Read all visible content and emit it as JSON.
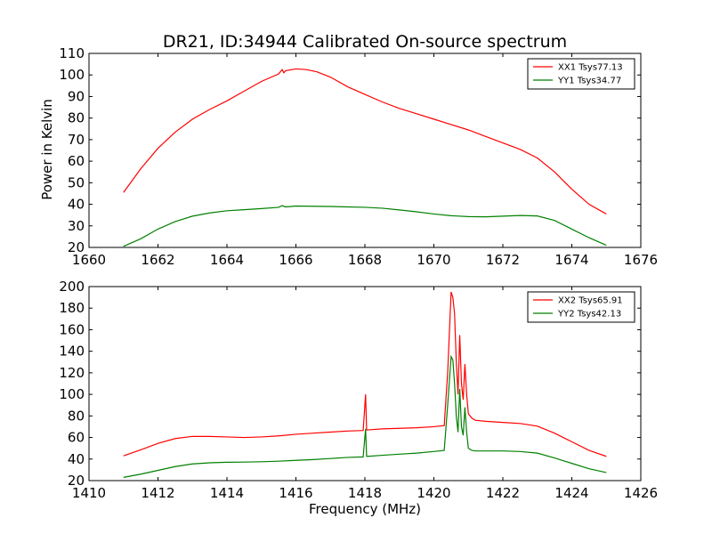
{
  "figure": {
    "title": "DR21, ID:34944 Calibrated On-source spectrum",
    "xlabel": "Frequency (MHz)",
    "ylabel": "Power in Kelvin"
  },
  "colors": {
    "xx": "#ff0000",
    "yy": "#008000"
  },
  "chart_data": [
    {
      "type": "line",
      "xlim": [
        1660,
        1676
      ],
      "ylim": [
        20,
        110
      ],
      "xticks": [
        1660,
        1662,
        1664,
        1666,
        1668,
        1670,
        1672,
        1674,
        1676
      ],
      "yticks": [
        20,
        30,
        40,
        50,
        60,
        70,
        80,
        90,
        100,
        110
      ],
      "legend_position": "top-right",
      "series": [
        {
          "name": "XX1 Tsys77.13",
          "color": "#ff0000",
          "x": [
            1661.0,
            1661.5,
            1662.0,
            1662.5,
            1663.0,
            1663.5,
            1664.0,
            1664.5,
            1665.0,
            1665.5,
            1665.6,
            1665.65,
            1665.7,
            1666.0,
            1666.3,
            1666.6,
            1667.0,
            1667.5,
            1668.0,
            1668.5,
            1669.0,
            1669.5,
            1670.0,
            1670.5,
            1671.0,
            1671.5,
            1672.0,
            1672.5,
            1673.0,
            1673.5,
            1674.0,
            1674.5,
            1675.0
          ],
          "y": [
            45.5,
            56.5,
            66.0,
            73.5,
            79.5,
            84.0,
            88.0,
            92.5,
            97.0,
            100.5,
            102.5,
            101.0,
            102.0,
            102.8,
            102.5,
            101.5,
            99.0,
            94.5,
            91.0,
            87.5,
            84.5,
            82.0,
            79.5,
            77.0,
            74.5,
            71.5,
            68.5,
            65.5,
            61.5,
            55.0,
            47.0,
            40.0,
            35.5
          ]
        },
        {
          "name": "YY1 Tsys34.77",
          "color": "#008000",
          "x": [
            1661.0,
            1661.5,
            1662.0,
            1662.5,
            1663.0,
            1663.5,
            1664.0,
            1664.5,
            1665.0,
            1665.5,
            1665.6,
            1665.7,
            1666.0,
            1667.0,
            1668.0,
            1668.5,
            1669.0,
            1669.5,
            1670.0,
            1670.5,
            1671.0,
            1671.5,
            1672.0,
            1672.5,
            1673.0,
            1673.5,
            1674.0,
            1674.5,
            1675.0
          ],
          "y": [
            20.5,
            24.0,
            28.5,
            32.0,
            34.5,
            36.0,
            37.0,
            37.5,
            38.0,
            38.6,
            39.4,
            38.8,
            39.2,
            39.0,
            38.6,
            38.2,
            37.4,
            36.5,
            35.5,
            34.7,
            34.3,
            34.2,
            34.5,
            34.8,
            34.6,
            32.5,
            28.5,
            24.5,
            21.0
          ]
        }
      ]
    },
    {
      "type": "line",
      "xlim": [
        1410,
        1426
      ],
      "ylim": [
        20,
        200
      ],
      "xticks": [
        1410,
        1412,
        1414,
        1416,
        1418,
        1420,
        1422,
        1424,
        1426
      ],
      "yticks": [
        20,
        40,
        60,
        80,
        100,
        120,
        140,
        160,
        180,
        200
      ],
      "legend_position": "top-right",
      "series": [
        {
          "name": "XX2 Tsys65.91",
          "color": "#ff0000",
          "x": [
            1411.0,
            1411.5,
            1412.0,
            1412.5,
            1413.0,
            1413.5,
            1414.0,
            1414.5,
            1415.0,
            1415.5,
            1416.0,
            1416.5,
            1417.0,
            1417.5,
            1417.95,
            1418.02,
            1418.05,
            1418.08,
            1418.5,
            1419.0,
            1419.5,
            1420.0,
            1420.3,
            1420.4,
            1420.5,
            1420.55,
            1420.6,
            1420.65,
            1420.7,
            1420.75,
            1420.8,
            1420.85,
            1420.9,
            1420.95,
            1421.0,
            1421.1,
            1421.2,
            1421.5,
            1422.0,
            1422.5,
            1423.0,
            1423.5,
            1424.0,
            1424.5,
            1425.0
          ],
          "y": [
            43.0,
            48.5,
            54.5,
            59.0,
            61.0,
            61.0,
            60.5,
            60.0,
            60.5,
            61.5,
            63.0,
            64.0,
            65.0,
            66.0,
            66.5,
            100.0,
            67.0,
            67.0,
            68.0,
            68.5,
            69.0,
            70.0,
            71.0,
            120.0,
            195.0,
            190.0,
            175.0,
            130.0,
            100.0,
            155.0,
            110.0,
            95.0,
            128.0,
            100.0,
            82.0,
            78.0,
            76.0,
            75.0,
            74.0,
            73.0,
            70.5,
            64.0,
            56.0,
            48.0,
            42.5
          ]
        },
        {
          "name": "YY2 Tsys42.13",
          "color": "#008000",
          "x": [
            1411.0,
            1411.5,
            1412.0,
            1412.5,
            1413.0,
            1413.5,
            1414.0,
            1414.5,
            1415.0,
            1415.5,
            1416.0,
            1416.5,
            1417.0,
            1417.5,
            1417.95,
            1418.02,
            1418.05,
            1418.08,
            1418.5,
            1419.0,
            1419.5,
            1420.0,
            1420.3,
            1420.4,
            1420.5,
            1420.55,
            1420.6,
            1420.65,
            1420.7,
            1420.75,
            1420.8,
            1420.85,
            1420.9,
            1420.95,
            1421.0,
            1421.1,
            1421.2,
            1421.5,
            1422.0,
            1422.5,
            1423.0,
            1423.5,
            1424.0,
            1424.5,
            1425.0
          ],
          "y": [
            23.0,
            26.0,
            29.5,
            33.0,
            35.5,
            36.5,
            37.0,
            37.2,
            37.5,
            38.0,
            38.8,
            39.5,
            40.5,
            41.5,
            42.0,
            68.0,
            42.5,
            42.5,
            43.5,
            44.5,
            45.5,
            47.0,
            48.0,
            90.0,
            135.0,
            132.0,
            110.0,
            80.0,
            65.0,
            105.0,
            70.0,
            62.0,
            88.0,
            65.0,
            50.0,
            48.0,
            47.5,
            47.5,
            47.5,
            47.0,
            45.5,
            41.0,
            36.0,
            31.0,
            27.5
          ]
        }
      ]
    }
  ]
}
